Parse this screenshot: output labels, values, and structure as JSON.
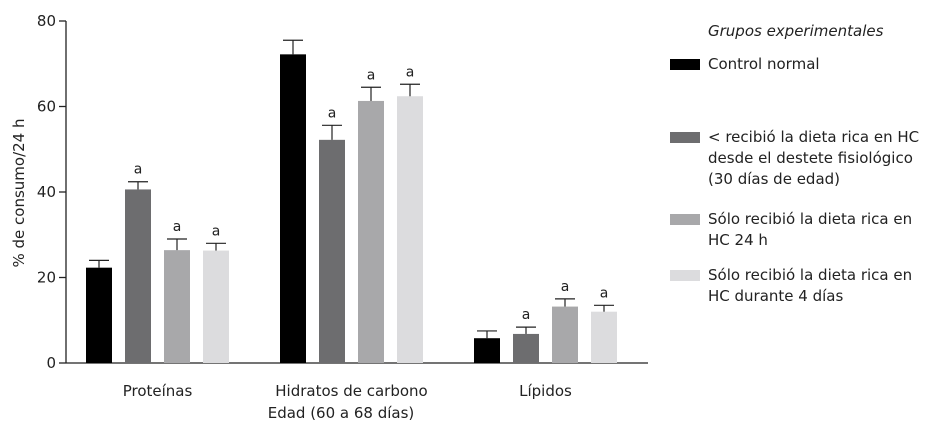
{
  "chart_data": {
    "type": "bar",
    "categories": [
      "Proteínas",
      "Hidratos de carbono",
      "Lípidos"
    ],
    "xlabel": "Edad (60 a 68 días)",
    "ylabel": "% de consumo/24 h",
    "ylim": [
      0,
      80
    ],
    "yticks": [
      "0",
      "20",
      "40",
      "60",
      "80"
    ],
    "legend_title": "Grupos experimentales",
    "legend_position": "right",
    "series": [
      {
        "name": "Control normal",
        "color": "#000000",
        "values": [
          22.3,
          72.2,
          5.8
        ],
        "errors": [
          1.7,
          3.3,
          1.7
        ],
        "sig": [
          "",
          "",
          ""
        ]
      },
      {
        "name": "< recibió la dieta rica en HC\ndesde el destete fisiológico\n(30 días de edad)",
        "color": "#6d6d6f",
        "values": [
          40.6,
          52.2,
          6.8
        ],
        "errors": [
          1.8,
          3.4,
          1.6
        ],
        "sig": [
          "a",
          "a",
          "a"
        ]
      },
      {
        "name": "Sólo recibió la dieta rica en\nHC 24 h",
        "color": "#a8a8aa",
        "values": [
          26.4,
          61.3,
          13.2
        ],
        "errors": [
          2.6,
          3.2,
          1.8
        ],
        "sig": [
          "a",
          "a",
          "a"
        ]
      },
      {
        "name": "Sólo recibió la dieta rica en\nHC durante 4 días",
        "color": "#dcdcde",
        "values": [
          26.3,
          62.4,
          12.0
        ],
        "errors": [
          1.7,
          2.8,
          1.5
        ],
        "sig": [
          "a",
          "a",
          "a"
        ]
      }
    ]
  }
}
